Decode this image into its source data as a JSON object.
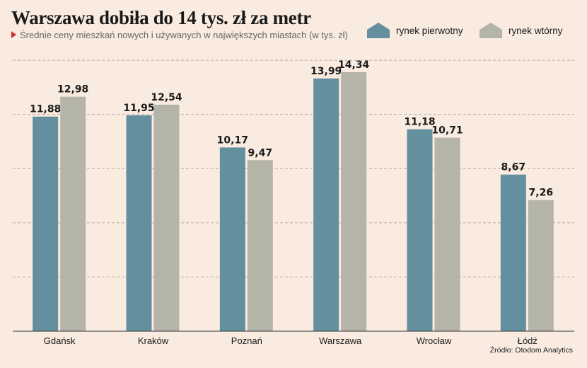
{
  "title": "Warszawa dobiła do 14 tys. zł za metr",
  "subtitle": "Średnie ceny mieszkań nowych i używanych w największych miastach (w tys. zł)",
  "source": "Źródło: Otodom Analytics",
  "colors": {
    "primary": "#638f9f",
    "secondary": "#b5b4a9",
    "background": "#f9ebe0",
    "accent": "#d62c2c"
  },
  "legend": [
    {
      "label": "rynek pierwotny",
      "icon": "house-icon",
      "color": "#638f9f"
    },
    {
      "label": "rynek wtórny",
      "icon": "house-icon",
      "color": "#b5b4a9"
    }
  ],
  "chart_data": {
    "type": "bar",
    "categories": [
      "Gdańsk",
      "Kraków",
      "Poznań",
      "Warszawa",
      "Wrocław",
      "Łódź"
    ],
    "series": [
      {
        "name": "rynek pierwotny",
        "values": [
          11.88,
          11.95,
          10.17,
          13.99,
          11.18,
          8.67
        ],
        "labels": [
          "11,88",
          "11,95",
          "10,17",
          "13,99",
          "11,18",
          "8,67"
        ]
      },
      {
        "name": "rynek wtórny",
        "values": [
          12.98,
          12.54,
          9.47,
          14.34,
          10.71,
          7.26
        ],
        "labels": [
          "12,98",
          "12,54",
          "9,47",
          "14,34",
          "10,71",
          "7,26"
        ]
      }
    ],
    "ylim": [
      0,
      15.2
    ],
    "grid": true,
    "legend_position": "top-right"
  }
}
